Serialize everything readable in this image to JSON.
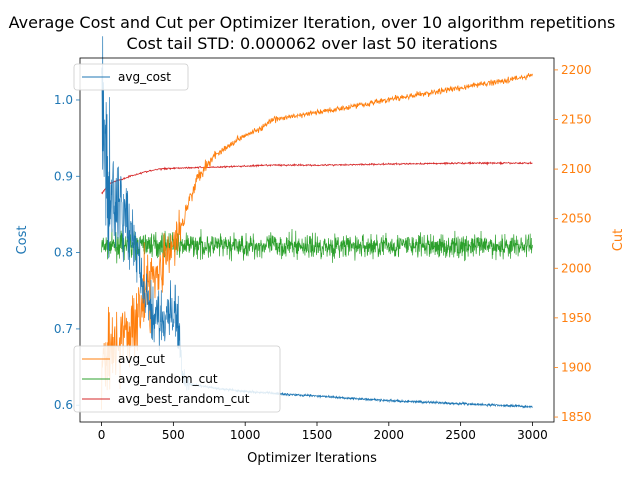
{
  "chart_data": {
    "type": "line",
    "title": "Average Cost and Cut per Optimizer Iteration, over 10 algorithm repetitions",
    "subtitle": "Cost tail STD: 0.000062 over last 50 iterations",
    "xlabel": "Optimizer Iterations",
    "ylabel_left": "Cost",
    "ylabel_right": "Cut",
    "xlim": [
      -150,
      3150
    ],
    "ylim_left": [
      0.578,
      1.055
    ],
    "ylim_right": [
      1845,
      2212
    ],
    "xticks": [
      0,
      500,
      1000,
      1500,
      2000,
      2500,
      3000
    ],
    "yticks_left": [
      0.6,
      0.7,
      0.8,
      0.9,
      1.0
    ],
    "yticks_right": [
      1850,
      1900,
      1950,
      2000,
      2050,
      2100,
      2150,
      2200
    ],
    "colors": {
      "avg_cost": "#1f77b4",
      "avg_cut": "#ff7f0e",
      "avg_random_cut": "#2ca02c",
      "avg_best_random_cut": "#d62728"
    },
    "legend_left": {
      "placement": "upper-left",
      "entries": [
        "avg_cost"
      ]
    },
    "legend_right": {
      "placement": "lower-left",
      "entries": [
        "avg_cut",
        "avg_random_cut",
        "avg_best_random_cut"
      ]
    },
    "series": [
      {
        "name": "avg_cost",
        "axis": "left",
        "x": [
          0,
          20,
          50,
          100,
          150,
          200,
          250,
          300,
          350,
          400,
          450,
          500,
          540,
          560,
          600,
          800,
          1000,
          1500,
          2000,
          2500,
          3000
        ],
        "y": [
          1.01,
          0.93,
          0.88,
          0.86,
          0.85,
          0.83,
          0.8,
          0.74,
          0.72,
          0.715,
          0.715,
          0.715,
          0.71,
          0.64,
          0.628,
          0.622,
          0.618,
          0.612,
          0.606,
          0.602,
          0.598
        ]
      },
      {
        "name": "avg_cut",
        "axis": "right",
        "x": [
          0,
          50,
          100,
          150,
          200,
          250,
          300,
          350,
          400,
          450,
          500,
          550,
          600,
          650,
          700,
          800,
          900,
          1000,
          1100,
          1200,
          1500,
          2000,
          2500,
          2950,
          3000
        ],
        "y": [
          1900,
          1920,
          1925,
          1928,
          1932,
          1960,
          1975,
          1990,
          2000,
          2010,
          2020,
          2040,
          2065,
          2085,
          2100,
          2115,
          2125,
          2135,
          2140,
          2150,
          2157,
          2170,
          2182,
          2193,
          2195
        ]
      },
      {
        "name": "avg_random_cut",
        "axis": "right",
        "x": [
          0,
          300,
          600,
          900,
          1200,
          1500,
          1800,
          2100,
          2400,
          2700,
          3000
        ],
        "y": [
          2022,
          2024,
          2023,
          2022,
          2023,
          2022,
          2022,
          2023,
          2022,
          2022,
          2023
        ]
      },
      {
        "name": "avg_best_random_cut",
        "axis": "right",
        "x": [
          0,
          50,
          100,
          150,
          200,
          300,
          400,
          500,
          800,
          1000,
          1200,
          1500,
          2000,
          2500,
          3000
        ],
        "y": [
          2075,
          2085,
          2088,
          2090,
          2093,
          2097,
          2100,
          2101,
          2102,
          2103,
          2104,
          2104,
          2105,
          2106,
          2106
        ]
      }
    ]
  }
}
